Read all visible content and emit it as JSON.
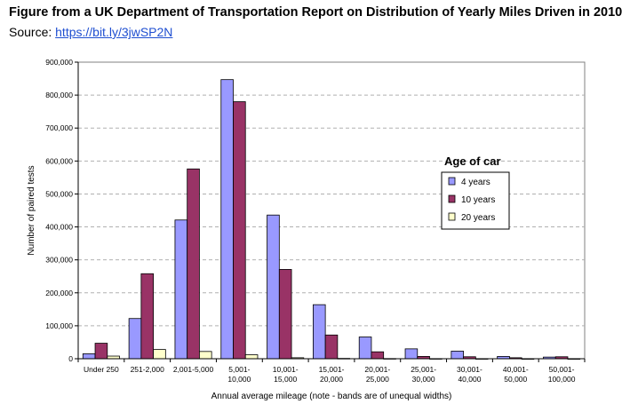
{
  "header": {
    "title": "Figure from a UK Department of Transportation Report on Distribution of Yearly Miles Driven in 2010",
    "source_prefix": "Source: ",
    "source_link": "https://bit.ly/3jwSP2N"
  },
  "chart_data": {
    "type": "bar",
    "title": "",
    "xlabel": "Annual average mileage (note - bands are of unequal widths)",
    "ylabel": "Number of paired tests",
    "ylim": [
      0,
      900000
    ],
    "yticks": [
      0,
      100000,
      200000,
      300000,
      400000,
      500000,
      600000,
      700000,
      800000,
      900000
    ],
    "ytick_labels": [
      "0",
      "100,000",
      "200,000",
      "300,000",
      "400,000",
      "500,000",
      "600,000",
      "700,000",
      "800,000",
      "900,000"
    ],
    "categories": [
      [
        "Under 250"
      ],
      [
        "251-2,000"
      ],
      [
        "2,001-5,000"
      ],
      [
        "5,001-",
        "10,000"
      ],
      [
        "10,001-",
        "15,000"
      ],
      [
        "15,001-",
        "20,000"
      ],
      [
        "20,001-",
        "25,000"
      ],
      [
        "25,001-",
        "30,000"
      ],
      [
        "30,001-",
        "40,000"
      ],
      [
        "40,001-",
        "50,000"
      ],
      [
        "50,001-",
        "100,000"
      ]
    ],
    "legend_title": "Age of car",
    "legend_position": "right",
    "grid": "horizontal dashed",
    "series": [
      {
        "name": "4 years",
        "color": "#9999ff",
        "values": [
          15000,
          122000,
          421000,
          847000,
          436000,
          164000,
          66000,
          30000,
          23000,
          7000,
          5000
        ]
      },
      {
        "name": "10 years",
        "color": "#993366",
        "values": [
          47000,
          258000,
          576000,
          780000,
          271000,
          72000,
          21000,
          7000,
          6000,
          3000,
          6000
        ]
      },
      {
        "name": "20 years",
        "color": "#ffffcc",
        "values": [
          8000,
          28000,
          22000,
          12000,
          3000,
          1000,
          500,
          300,
          200,
          100,
          100
        ]
      }
    ]
  }
}
